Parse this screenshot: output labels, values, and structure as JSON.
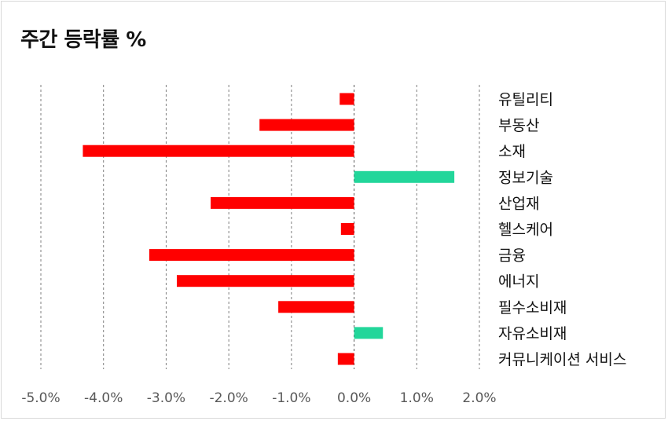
{
  "chart_data": {
    "type": "bar",
    "orientation": "horizontal",
    "title": "주간 등락률 %",
    "categories": [
      "유틸리티",
      "부동산",
      "소재",
      "정보기술",
      "산업재",
      "헬스케어",
      "금융",
      "에너지",
      "필수소비재",
      "자유소비재",
      "커뮤니케이션 서비스"
    ],
    "values": [
      -0.23,
      -1.51,
      -4.33,
      1.6,
      -2.29,
      -0.21,
      -3.27,
      -2.83,
      -1.21,
      0.46,
      -0.26
    ],
    "xlim": [
      -5.0,
      2.0
    ],
    "x_ticks": [
      -5.0,
      -4.0,
      -3.0,
      -2.0,
      -1.0,
      0.0,
      1.0,
      2.0
    ],
    "x_tick_labels": [
      "-5.0%",
      "-4.0%",
      "-3.0%",
      "-2.0%",
      "-1.0%",
      "0.0%",
      "1.0%",
      "2.0%"
    ],
    "xlabel": "",
    "ylabel": "",
    "grid": "vertical dashed",
    "legend": "none",
    "colors": {
      "negative": "#ff0000",
      "positive": "#22d69a",
      "grid": "#7f7f7f",
      "axis": "#595959"
    }
  }
}
